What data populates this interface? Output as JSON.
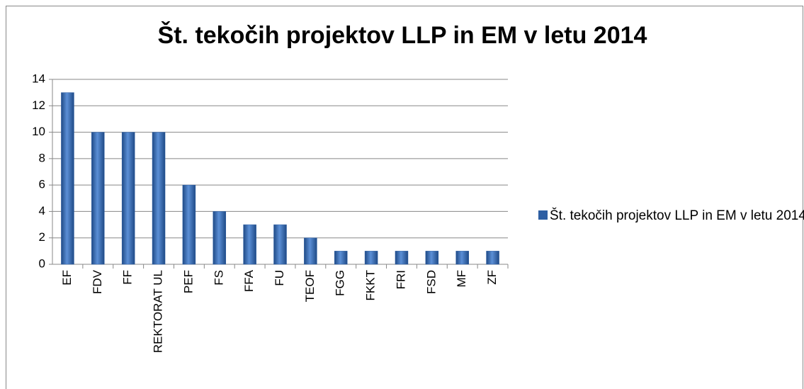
{
  "chart_data": {
    "type": "bar",
    "title": "Št. tekočih projektov LLP in EM  v letu 2014",
    "categories": [
      "EF",
      "FDV",
      "FF",
      "REKTORAT UL",
      "PEF",
      "FS",
      "FFA",
      "FU",
      "TEOF",
      "FGG",
      "FKKT",
      "FRI",
      "FSD",
      "MF",
      "ZF"
    ],
    "series": [
      {
        "name": "Št. tekočih projektov LLP in EM v letu 2014",
        "color": "#2e5fa3",
        "values": [
          13,
          10,
          10,
          10,
          6,
          4,
          3,
          3,
          2,
          1,
          1,
          1,
          1,
          1,
          1
        ]
      }
    ],
    "ylim": [
      0,
      14
    ],
    "yticks": [
      0,
      2,
      4,
      6,
      8,
      10,
      12,
      14
    ],
    "grid": true,
    "legend": "right"
  }
}
